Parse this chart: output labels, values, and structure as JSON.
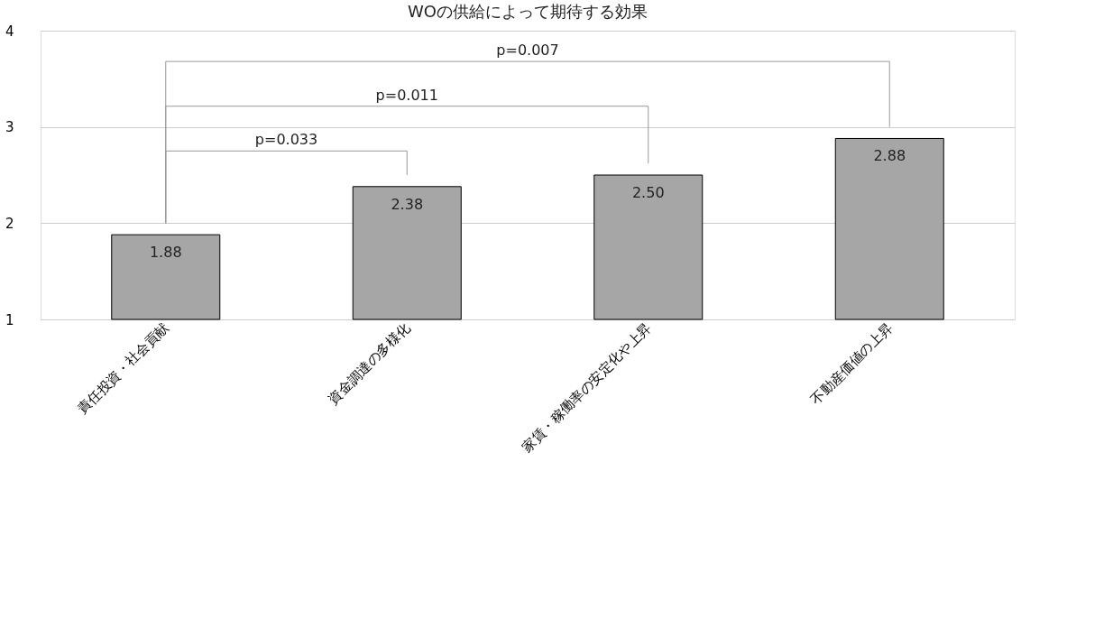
{
  "chart_data": {
    "type": "bar",
    "title": "WOの供給によって期待する効果",
    "categories": [
      "責任投資・社会貢献",
      "資金調達の多様化",
      "家賃・稼働率の安定化や上昇",
      "不動産価値の上昇"
    ],
    "values": [
      1.88,
      2.38,
      2.5,
      2.88
    ],
    "color": "#a6a6a6",
    "ylim": [
      1,
      4
    ],
    "yticks": [
      1,
      2,
      3,
      4
    ],
    "grid": "y",
    "value_labels": [
      "1.88",
      "2.38",
      "2.50",
      "2.88"
    ],
    "annotations": [
      "p=0.033",
      "p=0.011",
      "p=0.007"
    ]
  }
}
